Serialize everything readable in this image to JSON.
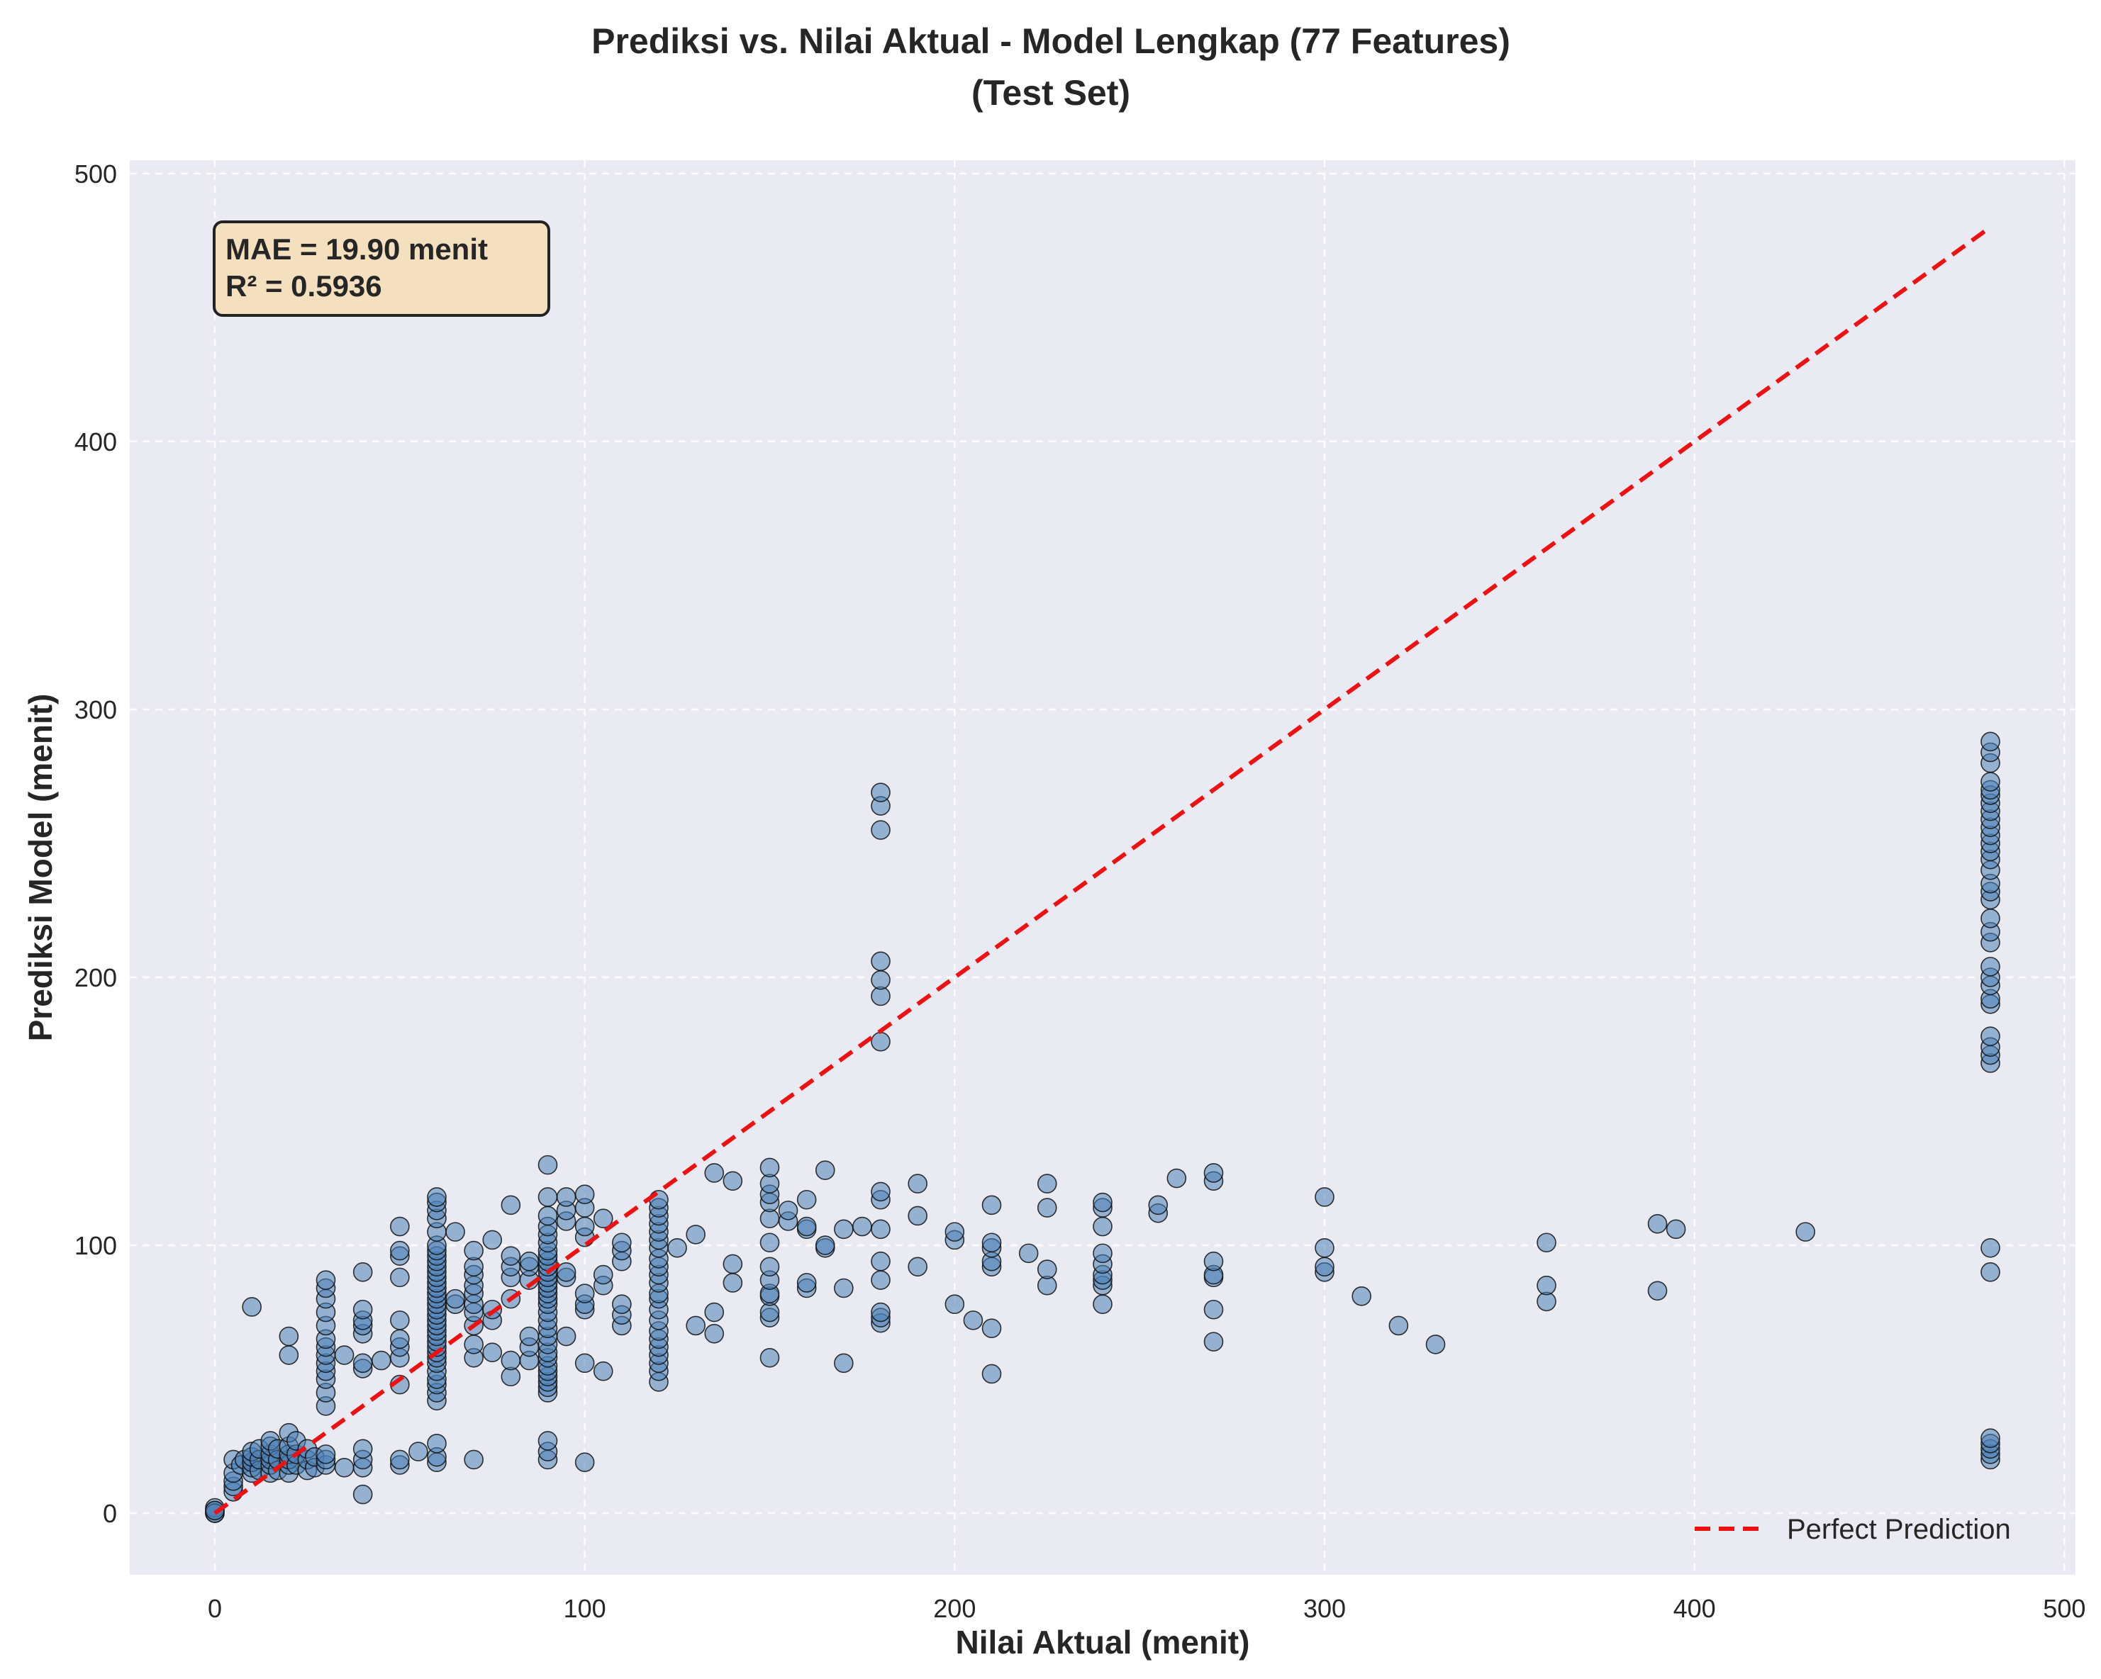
{
  "chart_data": {
    "type": "scatter",
    "title_line1": "Prediksi vs. Nilai Aktual - Model Lengkap (77 Features)",
    "title_line2": "(Test Set)",
    "xlabel": "Nilai Aktual (menit)",
    "ylabel": "Prediksi Model (menit)",
    "xlim": [
      -23,
      503
    ],
    "ylim": [
      -23,
      505
    ],
    "xticks": [
      0,
      100,
      200,
      300,
      400,
      500
    ],
    "yticks": [
      0,
      100,
      200,
      300,
      400,
      500
    ],
    "grid": true,
    "legend_position": "lower-right",
    "legend": {
      "reference_label": "Perfect Prediction"
    },
    "annotation": {
      "line1": "MAE = 19.90 menit",
      "line2": "R² = 0.5936"
    },
    "reference_line": {
      "x": [
        0,
        480
      ],
      "y": [
        0,
        480
      ]
    },
    "colors": {
      "points": "#4f81b8",
      "reference": "#ee1111",
      "annotation_bg": "#f4dfbe",
      "plot_bg": "#eaeaf2"
    },
    "points": [
      [
        0,
        0
      ],
      [
        0,
        1
      ],
      [
        0,
        2
      ],
      [
        0,
        0
      ],
      [
        0,
        1
      ],
      [
        5,
        8
      ],
      [
        5,
        10
      ],
      [
        5,
        12
      ],
      [
        5,
        15
      ],
      [
        5,
        20
      ],
      [
        7,
        18
      ],
      [
        8,
        20
      ],
      [
        10,
        77
      ],
      [
        10,
        15
      ],
      [
        10,
        17
      ],
      [
        10,
        19
      ],
      [
        10,
        21
      ],
      [
        10,
        23
      ],
      [
        12,
        16
      ],
      [
        12,
        20
      ],
      [
        12,
        24
      ],
      [
        15,
        15
      ],
      [
        15,
        18
      ],
      [
        15,
        20
      ],
      [
        15,
        22
      ],
      [
        15,
        25
      ],
      [
        15,
        27
      ],
      [
        17,
        16
      ],
      [
        17,
        20
      ],
      [
        17,
        24
      ],
      [
        20,
        15
      ],
      [
        20,
        18
      ],
      [
        20,
        20
      ],
      [
        20,
        22
      ],
      [
        20,
        25
      ],
      [
        20,
        30
      ],
      [
        20,
        59
      ],
      [
        20,
        66
      ],
      [
        22,
        18
      ],
      [
        22,
        22
      ],
      [
        22,
        27
      ],
      [
        25,
        16
      ],
      [
        25,
        20
      ],
      [
        25,
        24
      ],
      [
        27,
        17
      ],
      [
        27,
        21
      ],
      [
        30,
        18
      ],
      [
        30,
        20
      ],
      [
        30,
        22
      ],
      [
        30,
        40
      ],
      [
        30,
        45
      ],
      [
        30,
        50
      ],
      [
        30,
        53
      ],
      [
        30,
        56
      ],
      [
        30,
        59
      ],
      [
        30,
        62
      ],
      [
        30,
        65
      ],
      [
        30,
        70
      ],
      [
        30,
        75
      ],
      [
        30,
        80
      ],
      [
        30,
        84
      ],
      [
        30,
        87
      ],
      [
        35,
        17
      ],
      [
        35,
        59
      ],
      [
        40,
        7
      ],
      [
        40,
        17
      ],
      [
        40,
        20
      ],
      [
        40,
        24
      ],
      [
        40,
        54
      ],
      [
        40,
        56
      ],
      [
        40,
        67
      ],
      [
        40,
        70
      ],
      [
        40,
        72
      ],
      [
        40,
        76
      ],
      [
        40,
        90
      ],
      [
        45,
        57
      ],
      [
        50,
        18
      ],
      [
        50,
        20
      ],
      [
        50,
        48
      ],
      [
        50,
        58
      ],
      [
        50,
        62
      ],
      [
        50,
        65
      ],
      [
        50,
        72
      ],
      [
        50,
        88
      ],
      [
        50,
        96
      ],
      [
        50,
        98
      ],
      [
        50,
        107
      ],
      [
        55,
        23
      ],
      [
        60,
        19
      ],
      [
        60,
        21
      ],
      [
        60,
        26
      ],
      [
        60,
        42
      ],
      [
        60,
        45
      ],
      [
        60,
        48
      ],
      [
        60,
        50
      ],
      [
        60,
        53
      ],
      [
        60,
        56
      ],
      [
        60,
        58
      ],
      [
        60,
        60
      ],
      [
        60,
        62
      ],
      [
        60,
        64
      ],
      [
        60,
        66
      ],
      [
        60,
        68
      ],
      [
        60,
        70
      ],
      [
        60,
        72
      ],
      [
        60,
        74
      ],
      [
        60,
        76
      ],
      [
        60,
        78
      ],
      [
        60,
        80
      ],
      [
        60,
        82
      ],
      [
        60,
        84
      ],
      [
        60,
        86
      ],
      [
        60,
        88
      ],
      [
        60,
        90
      ],
      [
        60,
        92
      ],
      [
        60,
        94
      ],
      [
        60,
        96
      ],
      [
        60,
        98
      ],
      [
        60,
        100
      ],
      [
        60,
        105
      ],
      [
        60,
        110
      ],
      [
        60,
        113
      ],
      [
        60,
        116
      ],
      [
        60,
        118
      ],
      [
        65,
        78
      ],
      [
        65,
        80
      ],
      [
        65,
        105
      ],
      [
        70,
        20
      ],
      [
        70,
        58
      ],
      [
        70,
        63
      ],
      [
        70,
        70
      ],
      [
        70,
        75
      ],
      [
        70,
        78
      ],
      [
        70,
        82
      ],
      [
        70,
        85
      ],
      [
        70,
        89
      ],
      [
        70,
        92
      ],
      [
        70,
        98
      ],
      [
        75,
        60
      ],
      [
        75,
        72
      ],
      [
        75,
        76
      ],
      [
        75,
        102
      ],
      [
        80,
        51
      ],
      [
        80,
        57
      ],
      [
        80,
        80
      ],
      [
        80,
        88
      ],
      [
        80,
        92
      ],
      [
        80,
        96
      ],
      [
        80,
        115
      ],
      [
        85,
        57
      ],
      [
        85,
        62
      ],
      [
        85,
        66
      ],
      [
        85,
        87
      ],
      [
        85,
        92
      ],
      [
        85,
        94
      ],
      [
        90,
        20
      ],
      [
        90,
        23
      ],
      [
        90,
        27
      ],
      [
        90,
        45
      ],
      [
        90,
        47
      ],
      [
        90,
        49
      ],
      [
        90,
        51
      ],
      [
        90,
        53
      ],
      [
        90,
        55
      ],
      [
        90,
        58
      ],
      [
        90,
        60
      ],
      [
        90,
        63
      ],
      [
        90,
        66
      ],
      [
        90,
        69
      ],
      [
        90,
        72
      ],
      [
        90,
        75
      ],
      [
        90,
        78
      ],
      [
        90,
        80
      ],
      [
        90,
        82
      ],
      [
        90,
        84
      ],
      [
        90,
        86
      ],
      [
        90,
        88
      ],
      [
        90,
        90
      ],
      [
        90,
        92
      ],
      [
        90,
        94
      ],
      [
        90,
        96
      ],
      [
        90,
        98
      ],
      [
        90,
        101
      ],
      [
        90,
        104
      ],
      [
        90,
        107
      ],
      [
        90,
        111
      ],
      [
        90,
        118
      ],
      [
        90,
        130
      ],
      [
        95,
        66
      ],
      [
        95,
        88
      ],
      [
        95,
        90
      ],
      [
        95,
        109
      ],
      [
        95,
        113
      ],
      [
        95,
        118
      ],
      [
        100,
        19
      ],
      [
        100,
        56
      ],
      [
        100,
        76
      ],
      [
        100,
        78
      ],
      [
        100,
        82
      ],
      [
        100,
        103
      ],
      [
        100,
        107
      ],
      [
        100,
        114
      ],
      [
        100,
        119
      ],
      [
        105,
        53
      ],
      [
        105,
        85
      ],
      [
        105,
        89
      ],
      [
        105,
        110
      ],
      [
        110,
        70
      ],
      [
        110,
        74
      ],
      [
        110,
        78
      ],
      [
        110,
        94
      ],
      [
        110,
        98
      ],
      [
        110,
        101
      ],
      [
        120,
        49
      ],
      [
        120,
        53
      ],
      [
        120,
        56
      ],
      [
        120,
        59
      ],
      [
        120,
        62
      ],
      [
        120,
        65
      ],
      [
        120,
        68
      ],
      [
        120,
        72
      ],
      [
        120,
        76
      ],
      [
        120,
        80
      ],
      [
        120,
        82
      ],
      [
        120,
        86
      ],
      [
        120,
        89
      ],
      [
        120,
        92
      ],
      [
        120,
        95
      ],
      [
        120,
        99
      ],
      [
        120,
        102
      ],
      [
        120,
        105
      ],
      [
        120,
        108
      ],
      [
        120,
        111
      ],
      [
        120,
        114
      ],
      [
        120,
        117
      ],
      [
        125,
        99
      ],
      [
        130,
        70
      ],
      [
        130,
        104
      ],
      [
        135,
        67
      ],
      [
        135,
        75
      ],
      [
        135,
        127
      ],
      [
        140,
        86
      ],
      [
        140,
        93
      ],
      [
        140,
        124
      ],
      [
        150,
        58
      ],
      [
        150,
        73
      ],
      [
        150,
        75
      ],
      [
        150,
        81
      ],
      [
        150,
        82
      ],
      [
        150,
        87
      ],
      [
        150,
        92
      ],
      [
        150,
        101
      ],
      [
        150,
        110
      ],
      [
        150,
        116
      ],
      [
        150,
        119
      ],
      [
        150,
        123
      ],
      [
        150,
        129
      ],
      [
        155,
        109
      ],
      [
        155,
        113
      ],
      [
        160,
        84
      ],
      [
        160,
        86
      ],
      [
        160,
        106
      ],
      [
        160,
        107
      ],
      [
        160,
        117
      ],
      [
        165,
        99
      ],
      [
        165,
        100
      ],
      [
        165,
        128
      ],
      [
        170,
        56
      ],
      [
        170,
        84
      ],
      [
        170,
        106
      ],
      [
        175,
        107
      ],
      [
        180,
        71
      ],
      [
        180,
        73
      ],
      [
        180,
        75
      ],
      [
        180,
        87
      ],
      [
        180,
        94
      ],
      [
        180,
        106
      ],
      [
        180,
        117
      ],
      [
        180,
        120
      ],
      [
        180,
        176
      ],
      [
        180,
        193
      ],
      [
        180,
        199
      ],
      [
        180,
        206
      ],
      [
        180,
        255
      ],
      [
        180,
        264
      ],
      [
        180,
        269
      ],
      [
        190,
        92
      ],
      [
        190,
        111
      ],
      [
        190,
        123
      ],
      [
        200,
        78
      ],
      [
        200,
        102
      ],
      [
        200,
        105
      ],
      [
        205,
        72
      ],
      [
        210,
        52
      ],
      [
        210,
        69
      ],
      [
        210,
        92
      ],
      [
        210,
        94
      ],
      [
        210,
        99
      ],
      [
        210,
        101
      ],
      [
        210,
        115
      ],
      [
        220,
        97
      ],
      [
        225,
        85
      ],
      [
        225,
        91
      ],
      [
        225,
        114
      ],
      [
        225,
        123
      ],
      [
        240,
        78
      ],
      [
        240,
        85
      ],
      [
        240,
        87
      ],
      [
        240,
        89
      ],
      [
        240,
        93
      ],
      [
        240,
        97
      ],
      [
        240,
        107
      ],
      [
        240,
        114
      ],
      [
        240,
        116
      ],
      [
        255,
        112
      ],
      [
        255,
        115
      ],
      [
        260,
        125
      ],
      [
        270,
        64
      ],
      [
        270,
        76
      ],
      [
        270,
        88
      ],
      [
        270,
        89
      ],
      [
        270,
        94
      ],
      [
        270,
        124
      ],
      [
        270,
        127
      ],
      [
        300,
        90
      ],
      [
        300,
        92
      ],
      [
        300,
        99
      ],
      [
        300,
        118
      ],
      [
        310,
        81
      ],
      [
        320,
        70
      ],
      [
        330,
        63
      ],
      [
        360,
        79
      ],
      [
        360,
        85
      ],
      [
        360,
        101
      ],
      [
        390,
        83
      ],
      [
        390,
        108
      ],
      [
        395,
        106
      ],
      [
        430,
        105
      ],
      [
        480,
        20
      ],
      [
        480,
        22
      ],
      [
        480,
        24
      ],
      [
        480,
        26
      ],
      [
        480,
        28
      ],
      [
        480,
        90
      ],
      [
        480,
        99
      ],
      [
        480,
        168
      ],
      [
        480,
        171
      ],
      [
        480,
        174
      ],
      [
        480,
        178
      ],
      [
        480,
        190
      ],
      [
        480,
        192
      ],
      [
        480,
        197
      ],
      [
        480,
        200
      ],
      [
        480,
        204
      ],
      [
        480,
        213
      ],
      [
        480,
        217
      ],
      [
        480,
        222
      ],
      [
        480,
        229
      ],
      [
        480,
        232
      ],
      [
        480,
        235
      ],
      [
        480,
        240
      ],
      [
        480,
        244
      ],
      [
        480,
        247
      ],
      [
        480,
        250
      ],
      [
        480,
        253
      ],
      [
        480,
        256
      ],
      [
        480,
        259
      ],
      [
        480,
        262
      ],
      [
        480,
        265
      ],
      [
        480,
        268
      ],
      [
        480,
        270
      ],
      [
        480,
        273
      ],
      [
        480,
        280
      ],
      [
        480,
        284
      ],
      [
        480,
        288
      ]
    ]
  }
}
